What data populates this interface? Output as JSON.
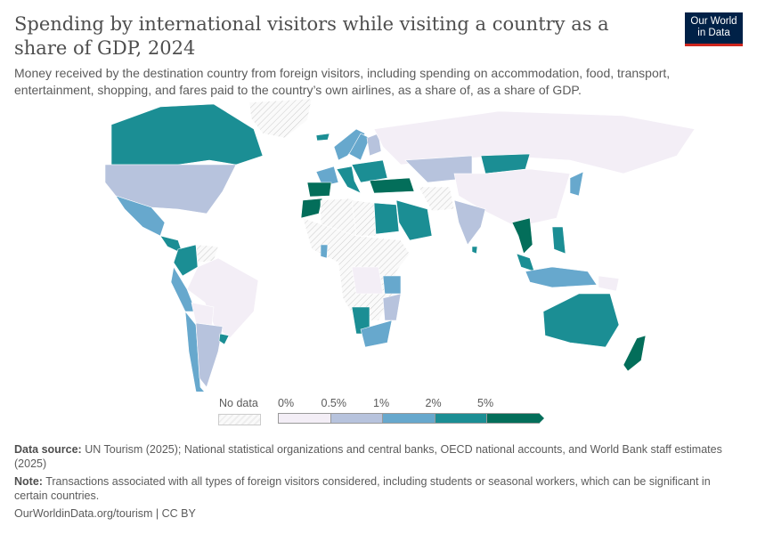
{
  "title": "Spending by international visitors while visiting a country as a share of GDP, 2024",
  "subtitle": "Money received by the destination country from foreign visitors, including spending on accommodation, food, transport, entertainment, shopping, and fares paid to the country’s own airlines, as a share of, as a share of GDP.",
  "logo": {
    "line1": "Our World",
    "line2": "in Data",
    "bg": "#002147",
    "accent": "#ce261e"
  },
  "chart_data": {
    "type": "choropleth",
    "legend": {
      "no_data_label": "No data",
      "ticks": [
        "0%",
        "0.5%",
        "1%",
        "2%",
        "5%"
      ],
      "bins": [
        {
          "range": "0–0.5%",
          "color": "#f3eef6"
        },
        {
          "range": "0.5–1%",
          "color": "#b7c3dd"
        },
        {
          "range": "1–2%",
          "color": "#67a8cd"
        },
        {
          "range": "2–5%",
          "color": "#1b8e94"
        },
        {
          "range": ">5%",
          "color": "#036e5a"
        }
      ],
      "no_data_color": "#f2f2f2"
    },
    "countries": {
      "Canada": 3,
      "United States": 1,
      "Mexico": 2,
      "Central America": 3,
      "Colombia": 3,
      "Venezuela": "none",
      "Brazil": 0,
      "Peru": 2,
      "Bolivia": 0,
      "Chile": 2,
      "Argentina": 1,
      "Uruguay": 3,
      "Greenland": "none",
      "Iceland": 3,
      "Norway": 2,
      "Sweden": 2,
      "Finland": 1,
      "Russia": 0,
      "Spain & Portugal": 4,
      "France": 2,
      "Italy": 3,
      "Balkans": 3,
      "Turkey": 4,
      "Morocco": 4,
      "Algeria": "none",
      "Libya": "none",
      "Egypt": 3,
      "Saudi Arabia": 3,
      "Iran": "none",
      "Kazakhstan": 1,
      "Mongolia": 3,
      "China": 0,
      "India": 1,
      "Sri Lanka": 3,
      "Thailand": 4,
      "Malaysia": 3,
      "Philippines": 3,
      "Indonesia": 2,
      "Papua New Guinea": 0,
      "Japan": 2,
      "Australia": 3,
      "New Zealand": 4,
      "Sub-Saharan Africa": "none",
      "DR Congo": 0,
      "Namibia": 3,
      "South Africa": 2,
      "Mozambique": 1,
      "Tanzania": 2,
      "Ghana": 2
    }
  },
  "footer": {
    "source_label": "Data source:",
    "source": "UN Tourism (2025); National statistical organizations and central banks, OECD national accounts, and World Bank staff estimates (2025)",
    "note_label": "Note:",
    "note": "Transactions associated with all types of foreign visitors considered, including students or seasonal workers, which can be significant in certain countries.",
    "link": "OurWorldinData.org/tourism",
    "license": "CC BY"
  }
}
